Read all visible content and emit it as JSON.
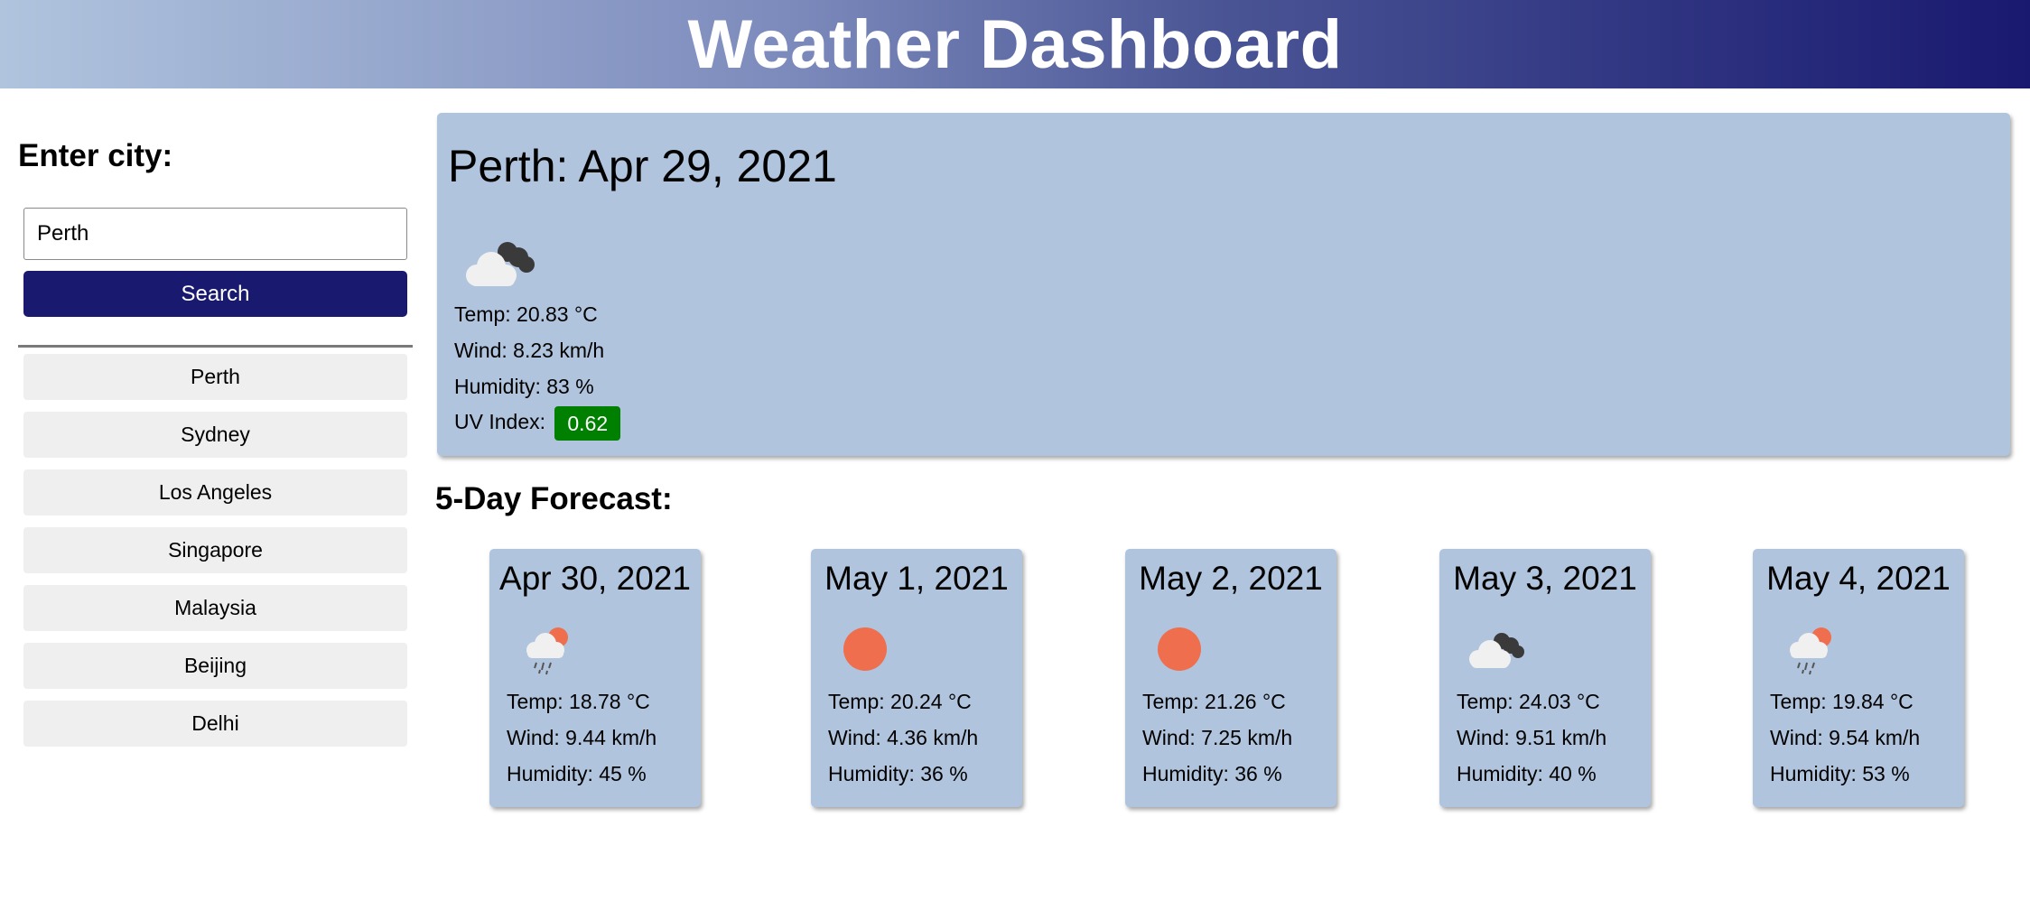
{
  "header": {
    "title": "Weather Dashboard"
  },
  "sidebar": {
    "heading": "Enter city:",
    "search": {
      "value": "Perth",
      "placeholder": ""
    },
    "search_label": "Search",
    "history": [
      "Perth",
      "Sydney",
      "Los Angeles",
      "Singapore",
      "Malaysia",
      "Beijing",
      "Delhi"
    ]
  },
  "current": {
    "title": "Perth: Apr 29, 2021",
    "icon": "cloudy-icon",
    "temp": "Temp: 20.83 °C",
    "wind": "Wind: 8.23 km/h",
    "humidity": "Humidity: 83 %",
    "uv_label": "UV Index:",
    "uv_value": "0.62",
    "uv_color": "#008000"
  },
  "forecast": {
    "title": "5-Day Forecast:",
    "days": [
      {
        "date": "Apr 30, 2021",
        "icon": "rain-sun-icon",
        "temp": "Temp: 18.78 °C",
        "wind": "Wind: 9.44 km/h",
        "humidity": "Humidity: 45 %"
      },
      {
        "date": "May 1, 2021",
        "icon": "sun-icon",
        "temp": "Temp: 20.24 °C",
        "wind": "Wind: 4.36 km/h",
        "humidity": "Humidity: 36 %"
      },
      {
        "date": "May 2, 2021",
        "icon": "sun-icon",
        "temp": "Temp: 21.26 °C",
        "wind": "Wind: 7.25 km/h",
        "humidity": "Humidity: 36 %"
      },
      {
        "date": "May 3, 2021",
        "icon": "cloudy-icon",
        "temp": "Temp: 24.03 °C",
        "wind": "Wind: 9.51 km/h",
        "humidity": "Humidity: 40 %"
      },
      {
        "date": "May 4, 2021",
        "icon": "rain-sun-icon",
        "temp": "Temp: 19.84 °C",
        "wind": "Wind: 9.54 km/h",
        "humidity": "Humidity: 53 %"
      }
    ]
  },
  "colors": {
    "header_start": "#b0c4de",
    "header_end": "#191970",
    "card_bg": "#b0c4de",
    "button_bg": "#191970",
    "sun": "#ee6e4e"
  }
}
